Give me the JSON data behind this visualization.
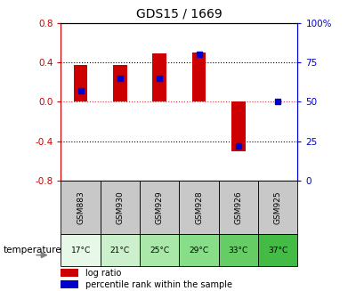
{
  "title": "GDS15 / 1669",
  "categories": [
    "GSM883",
    "GSM930",
    "GSM929",
    "GSM928",
    "GSM926",
    "GSM925"
  ],
  "temperatures": [
    "17°C",
    "21°C",
    "25°C",
    "29°C",
    "33°C",
    "37°C"
  ],
  "log_ratios": [
    0.38,
    0.38,
    0.49,
    0.5,
    -0.5,
    0.0
  ],
  "percentile_ranks": [
    57,
    65,
    65,
    80,
    22,
    50
  ],
  "bar_color": "#cc0000",
  "percentile_color": "#0000cc",
  "ylim_left": [
    -0.8,
    0.8
  ],
  "ylim_right": [
    0,
    100
  ],
  "yticks_left": [
    -0.8,
    -0.4,
    0.0,
    0.4,
    0.8
  ],
  "yticks_right": [
    0,
    25,
    50,
    75,
    100
  ],
  "zero_line_color": "#cc0000",
  "bar_width": 0.35,
  "legend_log_ratio": "log ratio",
  "legend_percentile": "percentile rank within the sample",
  "temperature_label": "temperature",
  "temp_colors": [
    "#e8f8e8",
    "#ccf0cc",
    "#aae8aa",
    "#88dd88",
    "#66cc66",
    "#44bb44"
  ],
  "gsm_bg_color": "#c8c8c8",
  "plot_bg_color": "#ffffff",
  "left_axis_color": "#cc0000",
  "right_axis_color": "#0000cc"
}
